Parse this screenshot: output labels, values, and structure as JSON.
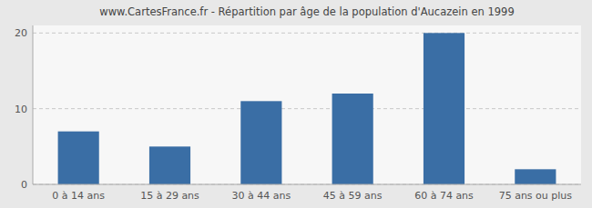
{
  "chart_data": {
    "type": "bar",
    "title": "www.CartesFrance.fr - Répartition par âge de la population d'Aucazein en 1999",
    "categories": [
      "0 à 14 ans",
      "15 à 29 ans",
      "30 à 44 ans",
      "45 à 59 ans",
      "60 à 74 ans",
      "75 ans ou plus"
    ],
    "values": [
      7,
      5,
      11,
      12,
      20,
      2
    ],
    "color": "#3a6ea5",
    "ylim": [
      0,
      21
    ],
    "yticks": [
      0,
      10,
      20
    ],
    "grid": true
  }
}
